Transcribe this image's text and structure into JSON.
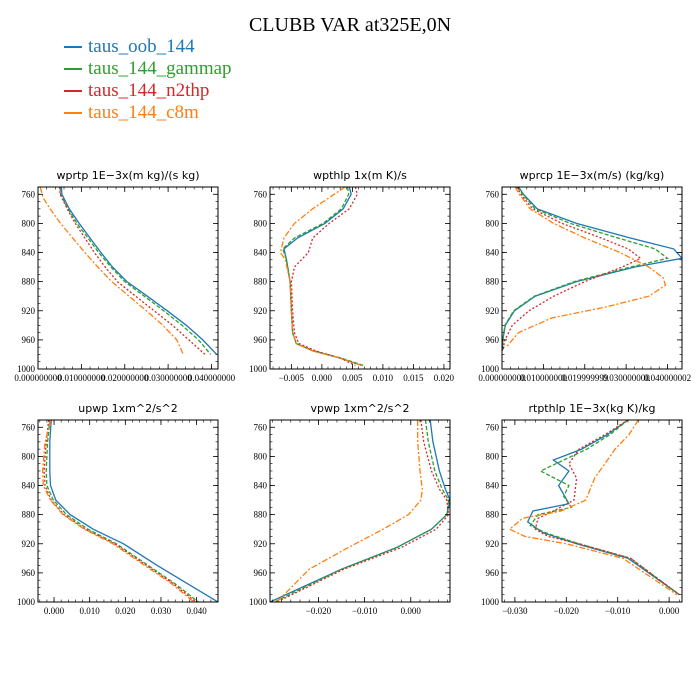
{
  "title": "CLUBB VAR at325E,0N",
  "colors": {
    "taus_oob_144": "#1f77b4",
    "taus_144_gammap": "#2ca02c",
    "taus_144_n2thp": "#d62728",
    "taus_144_c8m": "#ff7f0e"
  },
  "legend": [
    {
      "label": "taus_oob_144",
      "color": "#1f77b4"
    },
    {
      "label": "taus_144_gammap",
      "color": "#2ca02c"
    },
    {
      "label": "taus_144_n2thp",
      "color": "#d62728"
    },
    {
      "label": "taus_144_c8m",
      "color": "#ff7f0e"
    }
  ],
  "chart_data": [
    {
      "type": "line",
      "title": "wprtp   1E−3x(m kg)/(s kg)",
      "xlim": [
        0,
        0.0415
      ],
      "ylim": [
        1000,
        750
      ],
      "xticks": [
        0,
        0.01,
        0.02,
        0.03,
        0.04
      ],
      "xticklabels": [
        "0.000000000",
        "0.010000000",
        "0.020000000",
        "0.030000000",
        "0.040000000"
      ],
      "yticks": [
        760,
        800,
        840,
        880,
        920,
        960,
        1000
      ],
      "series": [
        {
          "name": "taus_oob_144",
          "color": "#1f77b4",
          "dash": "",
          "x": [
            0.0054,
            0.0055,
            0.0072,
            0.0095,
            0.012,
            0.0145,
            0.0172,
            0.0205,
            0.0252,
            0.0298,
            0.0342,
            0.038,
            0.0412
          ],
          "y": [
            750,
            760,
            780,
            800,
            820,
            840,
            860,
            880,
            900,
            920,
            940,
            960,
            980
          ]
        },
        {
          "name": "taus_144_gammap",
          "color": "#2ca02c",
          "dash": "4,2",
          "x": [
            0.0051,
            0.0052,
            0.0069,
            0.009,
            0.0115,
            0.014,
            0.0168,
            0.02,
            0.0245,
            0.029,
            0.0332,
            0.037,
            0.0398
          ],
          "y": [
            750,
            760,
            780,
            800,
            820,
            840,
            860,
            880,
            900,
            920,
            940,
            960,
            980
          ]
        },
        {
          "name": "taus_144_n2thp",
          "color": "#d62728",
          "dash": "2,2",
          "x": [
            0.005,
            0.0051,
            0.0067,
            0.0086,
            0.0108,
            0.013,
            0.0155,
            0.0183,
            0.0225,
            0.0268,
            0.031,
            0.0348,
            0.0385
          ],
          "y": [
            750,
            760,
            780,
            800,
            820,
            840,
            860,
            880,
            900,
            920,
            940,
            960,
            980
          ]
        },
        {
          "name": "taus_144_c8m",
          "color": "#ff7f0e",
          "dash": "6,2,2,2",
          "x": [
            0.0005,
            0.0012,
            0.0028,
            0.0052,
            0.008,
            0.0108,
            0.0138,
            0.017,
            0.021,
            0.025,
            0.0288,
            0.032,
            0.0335
          ],
          "y": [
            750,
            765,
            780,
            800,
            820,
            840,
            860,
            880,
            900,
            920,
            940,
            960,
            980
          ]
        }
      ]
    },
    {
      "type": "line",
      "title": "wpthlp   1x(m K)/s",
      "xlim": [
        -0.0085,
        0.021
      ],
      "ylim": [
        1000,
        750
      ],
      "xticks": [
        -0.005,
        0,
        0.005,
        0.01,
        0.015,
        0.02
      ],
      "xticklabels": [
        "−0.005",
        "0.000",
        "0.005",
        "0.010",
        "0.015",
        "0.020"
      ],
      "yticks": [
        760,
        800,
        840,
        880,
        920,
        960,
        1000
      ],
      "series": [
        {
          "name": "taus_oob_144",
          "color": "#1f77b4",
          "dash": "",
          "x": [
            0.0045,
            0.0048,
            0.0035,
            0.0005,
            -0.004,
            -0.0062,
            -0.0058,
            -0.0052,
            -0.005,
            -0.0048,
            -0.0042,
            -0.0015,
            0.003,
            0.0065
          ],
          "y": [
            750,
            760,
            780,
            800,
            820,
            835,
            850,
            880,
            920,
            950,
            965,
            975,
            985,
            995
          ]
        },
        {
          "name": "taus_144_gammap",
          "color": "#2ca02c",
          "dash": "4,2",
          "x": [
            0.0042,
            0.0044,
            0.0032,
            0.0002,
            -0.0045,
            -0.0064,
            -0.0058,
            -0.0052,
            -0.005,
            -0.0048,
            -0.0042,
            -0.0014,
            0.0032,
            0.0068
          ],
          "y": [
            750,
            760,
            780,
            800,
            820,
            835,
            850,
            880,
            920,
            950,
            965,
            975,
            985,
            995
          ]
        },
        {
          "name": "taus_144_n2thp",
          "color": "#d62728",
          "dash": "2,2",
          "x": [
            0.0055,
            0.0058,
            0.0045,
            0.0012,
            -0.0015,
            -0.0022,
            -0.0045,
            -0.005,
            -0.0048,
            -0.0045,
            -0.0038,
            -0.001,
            0.003,
            0.0055
          ],
          "y": [
            750,
            760,
            780,
            800,
            820,
            840,
            860,
            880,
            920,
            950,
            965,
            975,
            985,
            995
          ]
        },
        {
          "name": "taus_144_c8m",
          "color": "#ff7f0e",
          "dash": "6,2,2,2",
          "x": [
            0.0038,
            0.002,
            -0.0015,
            -0.0045,
            -0.0062,
            -0.0068,
            -0.006,
            -0.0052,
            -0.005,
            -0.0048,
            -0.0042,
            -0.0016,
            0.003,
            0.0065
          ],
          "y": [
            750,
            760,
            780,
            800,
            820,
            840,
            850,
            880,
            920,
            950,
            965,
            975,
            985,
            995
          ]
        }
      ]
    },
    {
      "type": "line",
      "title": "wprcp   1E−3x(m/s) (kg/kg)",
      "xlim": [
        0,
        0.0435
      ],
      "ylim": [
        1000,
        750
      ],
      "xticks": [
        0,
        0.01,
        0.02,
        0.03,
        0.04
      ],
      "xticklabels": [
        "0.000000000",
        "0.010000000",
        "0.019999999",
        "0.030000000",
        "0.040000002"
      ],
      "yticks": [
        760,
        800,
        840,
        880,
        920,
        960,
        1000
      ],
      "series": [
        {
          "name": "taus_oob_144",
          "color": "#1f77b4",
          "dash": "",
          "x": [
            0.004,
            0.0052,
            0.0085,
            0.018,
            0.031,
            0.0415,
            0.0435,
            0.032,
            0.018,
            0.008,
            0.003,
            0.0008,
            0.0002,
            0.0001
          ],
          "y": [
            750,
            760,
            780,
            800,
            820,
            835,
            848,
            860,
            880,
            900,
            920,
            940,
            960,
            975
          ]
        },
        {
          "name": "taus_144_gammap",
          "color": "#2ca02c",
          "dash": "4,2",
          "x": [
            0.0038,
            0.005,
            0.008,
            0.0165,
            0.028,
            0.037,
            0.04,
            0.031,
            0.0175,
            0.0078,
            0.0028,
            0.0007,
            0.0002,
            0.0001
          ],
          "y": [
            750,
            760,
            780,
            800,
            820,
            835,
            848,
            860,
            880,
            900,
            920,
            940,
            960,
            975
          ]
        },
        {
          "name": "taus_144_n2thp",
          "color": "#d62728",
          "dash": "2,2",
          "x": [
            0.0035,
            0.0046,
            0.0074,
            0.0145,
            0.024,
            0.0305,
            0.0335,
            0.029,
            0.02,
            0.0125,
            0.0065,
            0.0025,
            0.0007,
            0.0002
          ],
          "y": [
            750,
            760,
            780,
            800,
            820,
            835,
            848,
            860,
            880,
            900,
            920,
            940,
            960,
            975
          ]
        },
        {
          "name": "taus_144_c8m",
          "color": "#ff7f0e",
          "dash": "6,2,2,2",
          "x": [
            0.0032,
            0.0042,
            0.0068,
            0.0125,
            0.02,
            0.0285,
            0.0355,
            0.039,
            0.0395,
            0.0355,
            0.025,
            0.012,
            0.004,
            0.001
          ],
          "y": [
            750,
            760,
            780,
            800,
            820,
            840,
            860,
            875,
            885,
            900,
            915,
            930,
            950,
            970
          ]
        }
      ]
    },
    {
      "type": "line",
      "title": "upwp   1xm^2/s^2",
      "xlim": [
        -0.0045,
        0.046
      ],
      "ylim": [
        1000,
        750
      ],
      "xticks": [
        0,
        0.01,
        0.02,
        0.03,
        0.04
      ],
      "xticklabels": [
        "0.000",
        "0.010",
        "0.020",
        "0.030",
        "0.040"
      ],
      "yticks": [
        760,
        800,
        840,
        880,
        920,
        960,
        1000
      ],
      "series": [
        {
          "name": "taus_oob_144",
          "color": "#1f77b4",
          "dash": "",
          "x": [
            -0.0008,
            -0.0012,
            -0.0012,
            -0.001,
            0.0005,
            0.0045,
            0.011,
            0.0195,
            0.029,
            0.0375,
            0.046
          ],
          "y": [
            750,
            780,
            820,
            840,
            860,
            880,
            900,
            920,
            950,
            975,
            1000
          ]
        },
        {
          "name": "taus_144_gammap",
          "color": "#2ca02c",
          "dash": "4,2",
          "x": [
            -0.0012,
            -0.0018,
            -0.0022,
            -0.002,
            -0.0002,
            0.0035,
            0.0095,
            0.0175,
            0.0265,
            0.034,
            0.0405
          ],
          "y": [
            750,
            780,
            820,
            840,
            860,
            880,
            900,
            920,
            950,
            975,
            1000
          ]
        },
        {
          "name": "taus_144_n2thp",
          "color": "#d62728",
          "dash": "2,2",
          "x": [
            -0.0015,
            -0.0022,
            -0.0028,
            -0.0025,
            -0.0008,
            0.0028,
            0.0088,
            0.017,
            0.026,
            0.0335,
            0.0398
          ],
          "y": [
            750,
            780,
            820,
            840,
            860,
            880,
            900,
            920,
            950,
            975,
            1000
          ]
        },
        {
          "name": "taus_144_c8m",
          "color": "#ff7f0e",
          "dash": "6,2,2,2",
          "x": [
            -0.001,
            -0.0025,
            -0.0032,
            -0.003,
            -0.001,
            0.0025,
            0.0085,
            0.0165,
            0.0255,
            0.033,
            0.0392
          ],
          "y": [
            750,
            780,
            820,
            840,
            860,
            880,
            900,
            920,
            950,
            975,
            1000
          ]
        }
      ]
    },
    {
      "type": "line",
      "title": "vpwp   1xm^2/s^2",
      "xlim": [
        -0.0305,
        0.0085
      ],
      "ylim": [
        1000,
        750
      ],
      "xticks": [
        -0.02,
        -0.01,
        0
      ],
      "xticklabels": [
        "−0.020",
        "−0.010",
        "0.000"
      ],
      "yticks": [
        760,
        800,
        840,
        880,
        920,
        960,
        1000
      ],
      "series": [
        {
          "name": "taus_oob_144",
          "color": "#1f77b4",
          "dash": "",
          "x": [
            0.0042,
            0.0048,
            0.0062,
            0.0075,
            0.0085,
            0.0078,
            0.0045,
            -0.003,
            -0.015,
            -0.0305
          ],
          "y": [
            750,
            780,
            820,
            845,
            860,
            880,
            900,
            925,
            955,
            1000
          ]
        },
        {
          "name": "taus_144_gammap",
          "color": "#2ca02c",
          "dash": "4,2",
          "x": [
            0.0032,
            0.0038,
            0.0052,
            0.0068,
            0.0082,
            0.0078,
            0.0045,
            -0.003,
            -0.015,
            -0.0295
          ],
          "y": [
            750,
            780,
            820,
            845,
            860,
            880,
            900,
            925,
            955,
            1000
          ]
        },
        {
          "name": "taus_144_n2thp",
          "color": "#d62728",
          "dash": "2,2",
          "x": [
            0.0022,
            0.0028,
            0.0045,
            0.0062,
            0.0078,
            0.0082,
            0.0055,
            -0.002,
            -0.0145,
            -0.029
          ],
          "y": [
            750,
            780,
            820,
            845,
            860,
            880,
            900,
            925,
            955,
            1000
          ]
        },
        {
          "name": "taus_144_c8m",
          "color": "#ff7f0e",
          "dash": "6,2,2,2",
          "x": [
            0.0015,
            0.0015,
            0.002,
            0.0025,
            0.0022,
            -0.0005,
            -0.006,
            -0.0135,
            -0.022,
            -0.029
          ],
          "y": [
            750,
            780,
            820,
            845,
            860,
            880,
            900,
            925,
            955,
            1000
          ]
        }
      ]
    },
    {
      "type": "line",
      "title": "rtpthlp   1E−3x(kg K)/kg",
      "xlim": [
        -0.0325,
        0.0025
      ],
      "ylim": [
        1000,
        750
      ],
      "xticks": [
        -0.03,
        -0.02,
        -0.01,
        0
      ],
      "xticklabels": [
        "−0.030",
        "−0.020",
        "−0.010",
        "0.000"
      ],
      "yticks": [
        760,
        800,
        840,
        880,
        920,
        960,
        1000
      ],
      "series": [
        {
          "name": "taus_oob_144",
          "color": "#1f77b4",
          "dash": "",
          "x": [
            -0.008,
            -0.012,
            -0.017,
            -0.0225,
            -0.0195,
            -0.0215,
            -0.0195,
            -0.0265,
            -0.0275,
            -0.0245,
            -0.018,
            -0.008,
            0.002
          ],
          "y": [
            750,
            770,
            790,
            805,
            820,
            840,
            865,
            875,
            890,
            905,
            920,
            940,
            990
          ]
        },
        {
          "name": "taus_144_gammap",
          "color": "#2ca02c",
          "dash": "4,2",
          "x": [
            -0.008,
            -0.0115,
            -0.016,
            -0.025,
            -0.0195,
            -0.0205,
            -0.019,
            -0.0255,
            -0.027,
            -0.024,
            -0.0175,
            -0.0075,
            0.002
          ],
          "y": [
            750,
            770,
            790,
            820,
            840,
            855,
            870,
            880,
            895,
            905,
            920,
            940,
            990
          ]
        },
        {
          "name": "taus_144_n2thp",
          "color": "#d62728",
          "dash": "2,2",
          "x": [
            -0.008,
            -0.0125,
            -0.0175,
            -0.0195,
            -0.018,
            -0.0185,
            -0.0225,
            -0.0255,
            -0.026,
            -0.0235,
            -0.0175,
            -0.0075,
            0.002
          ],
          "y": [
            750,
            770,
            790,
            810,
            830,
            860,
            875,
            885,
            900,
            910,
            920,
            940,
            990
          ]
        },
        {
          "name": "taus_144_c8m",
          "color": "#ff7f0e",
          "dash": "6,2,2,2",
          "x": [
            -0.006,
            -0.0078,
            -0.0105,
            -0.0125,
            -0.0145,
            -0.0162,
            -0.021,
            -0.0285,
            -0.031,
            -0.028,
            -0.02,
            -0.009,
            0.0015
          ],
          "y": [
            750,
            770,
            790,
            810,
            830,
            860,
            875,
            885,
            900,
            910,
            920,
            940,
            990
          ]
        }
      ]
    }
  ]
}
